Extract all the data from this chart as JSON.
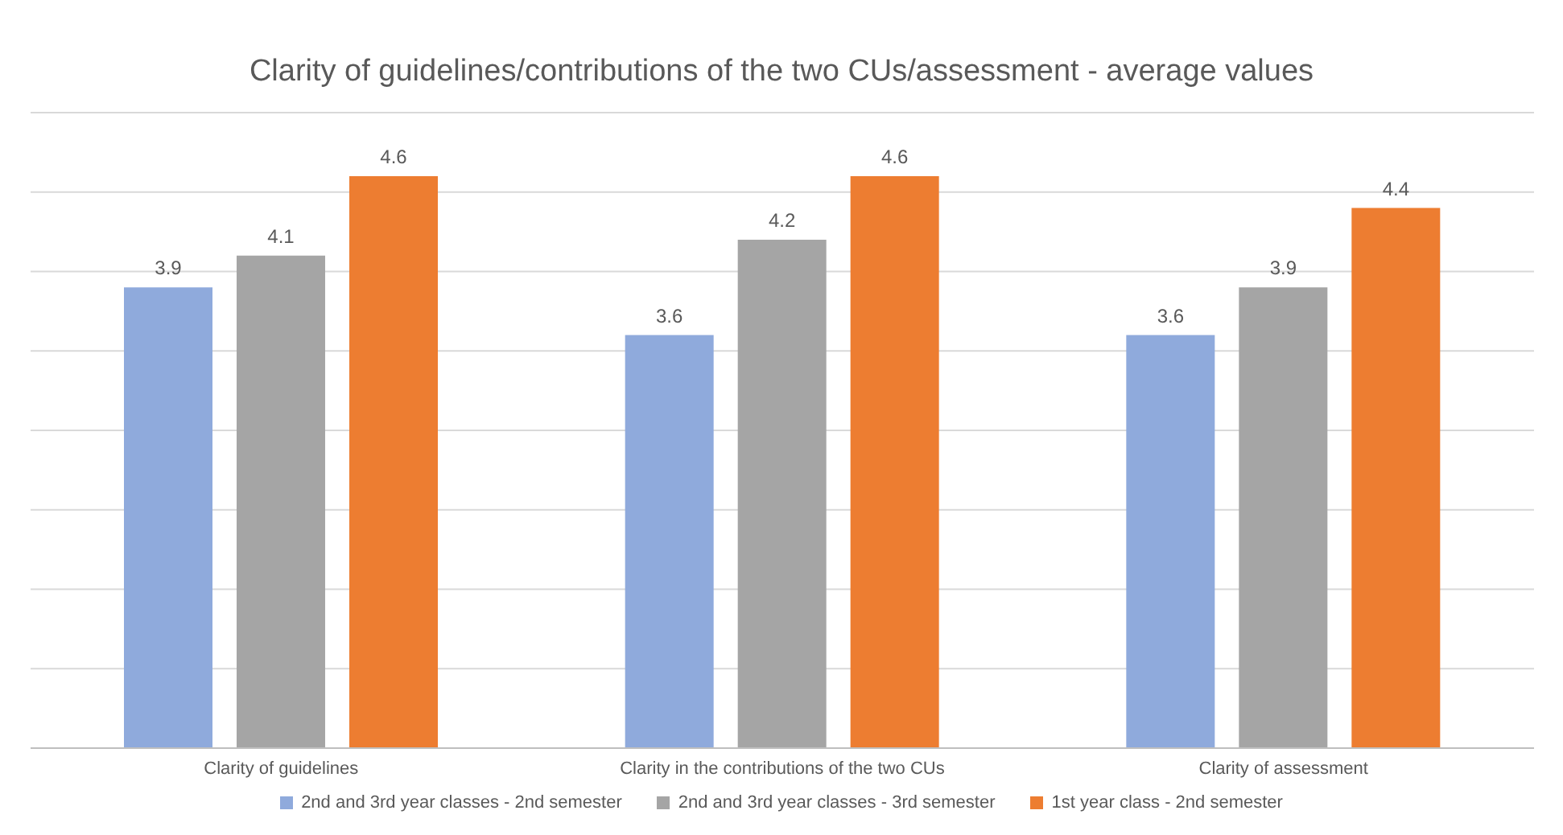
{
  "chart_data": {
    "type": "bar",
    "title": "Clarity of guidelines/contributions of the two CUs/assessment - average values",
    "categories": [
      "Clarity of guidelines",
      "Clarity in the contributions of the two CUs",
      "Clarity of assessment"
    ],
    "series": [
      {
        "name": "2nd and 3rd year classes - 2nd semester",
        "color": "#8faadc",
        "values": [
          3.9,
          3.6,
          3.6
        ]
      },
      {
        "name": "2nd and 3rd year classes - 3rd semester",
        "color": "#a5a5a5",
        "values": [
          4.1,
          4.2,
          3.9
        ]
      },
      {
        "name": "1st year class - 2nd semester",
        "color": "#ed7d31",
        "values": [
          4.6,
          4.6,
          4.4
        ]
      }
    ],
    "ylim": [
      1,
      5
    ],
    "yticks": [
      {
        "value": 1,
        "label": null
      },
      {
        "value": 1.5,
        "label": null
      },
      {
        "value": 2,
        "label": null
      },
      {
        "value": 2.5,
        "label": null
      },
      {
        "value": 3,
        "label": null
      },
      {
        "value": 3.5,
        "label": null
      },
      {
        "value": 4,
        "label": null
      },
      {
        "value": 4.5,
        "label": null
      },
      {
        "value": 5,
        "label": null
      }
    ],
    "tick_labels": "x",
    "grid": "y",
    "data_labels": true,
    "legend": "bottom"
  }
}
